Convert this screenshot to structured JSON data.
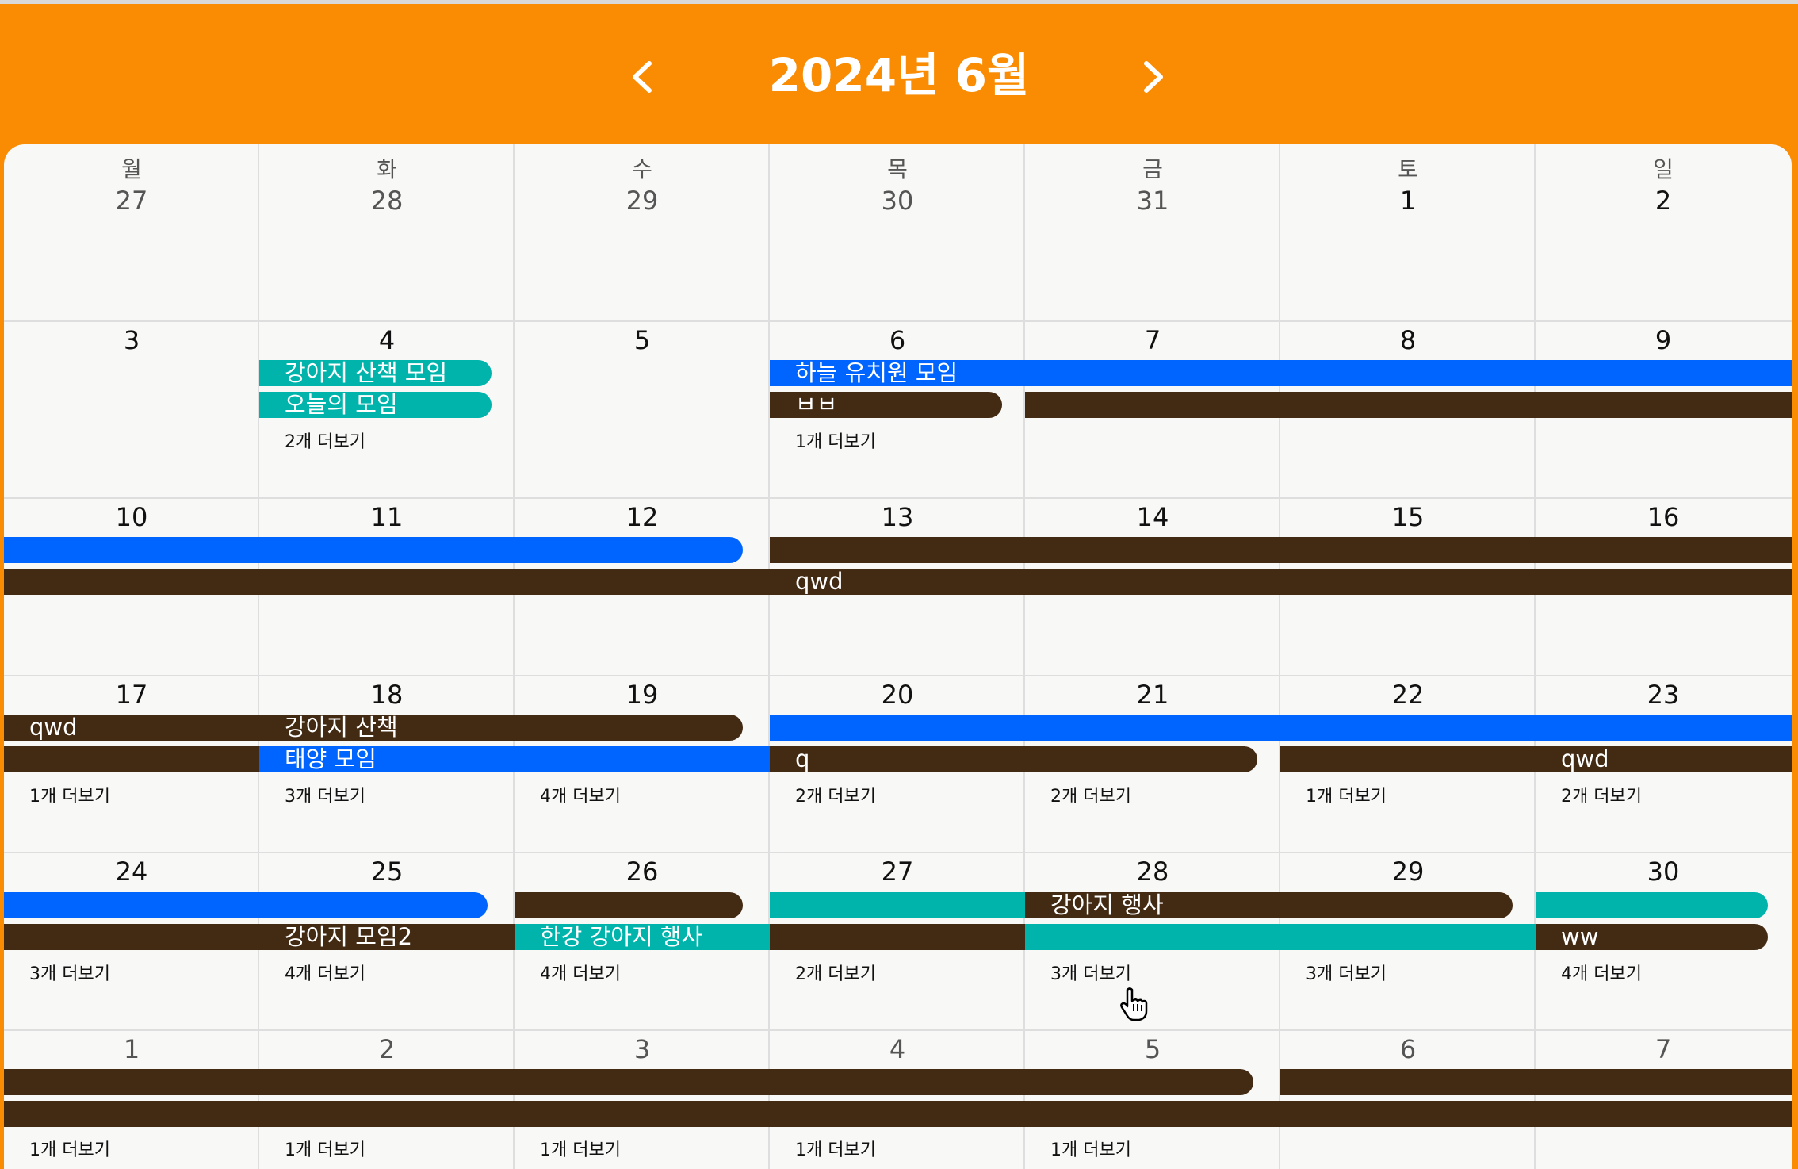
{
  "header": {
    "title": "2024년 6월",
    "prev_icon": "chevron-left-icon",
    "next_icon": "chevron-right-icon",
    "background_color": "#F98C02"
  },
  "colors": {
    "teal": "#00B4AC",
    "blue": "#0065FF",
    "brown": "#432A13"
  },
  "weekdays": [
    "월",
    "화",
    "수",
    "목",
    "금",
    "토",
    "일"
  ],
  "weeks": [
    {
      "days": [
        "27",
        "28",
        "29",
        "30",
        "31",
        "1",
        "2"
      ],
      "other_month": [
        true,
        true,
        true,
        true,
        true,
        false,
        false
      ]
    },
    {
      "days": [
        "3",
        "4",
        "5",
        "6",
        "7",
        "8",
        "9"
      ],
      "other_month": [
        false,
        false,
        false,
        false,
        false,
        false,
        false
      ]
    },
    {
      "days": [
        "10",
        "11",
        "12",
        "13",
        "14",
        "15",
        "16"
      ],
      "other_month": [
        false,
        false,
        false,
        false,
        false,
        false,
        false
      ]
    },
    {
      "days": [
        "17",
        "18",
        "19",
        "20",
        "21",
        "22",
        "23"
      ],
      "other_month": [
        false,
        false,
        false,
        false,
        false,
        false,
        false
      ]
    },
    {
      "days": [
        "24",
        "25",
        "26",
        "27",
        "28",
        "29",
        "30"
      ],
      "other_month": [
        false,
        false,
        false,
        false,
        false,
        false,
        false
      ]
    },
    {
      "days": [
        "1",
        "2",
        "3",
        "4",
        "5",
        "6",
        "7"
      ],
      "other_month": [
        true,
        true,
        true,
        true,
        true,
        true,
        true
      ]
    }
  ],
  "events": {
    "w2_e1": "강아지 산책 모임",
    "w2_e2": "오늘의 모임",
    "w2_e3": "하늘 유치원 모임",
    "w2_e4": "ㅂㅂ",
    "w3_e1": "qwd",
    "w4_e1": "qwd",
    "w4_e2": "강아지 산책",
    "w4_e3": "태양 모임",
    "w4_e4": "q",
    "w4_e5": "qwd",
    "w5_e1": "강아지 행사",
    "w5_e2": "강아지 모임2",
    "w5_e3": "한강 강아지 행사",
    "w5_e4": "ww"
  },
  "more": {
    "w2": [
      "2개 더보기",
      "1개 더보기"
    ],
    "w4": [
      "1개 더보기",
      "3개 더보기",
      "4개 더보기",
      "2개 더보기",
      "2개 더보기",
      "1개 더보기",
      "2개 더보기"
    ],
    "w5": [
      "3개 더보기",
      "4개 더보기",
      "4개 더보기",
      "2개 더보기",
      "3개 더보기",
      "3개 더보기",
      "4개 더보기"
    ],
    "w6": [
      "1개 더보기",
      "1개 더보기",
      "1개 더보기",
      "1개 더보기",
      "1개 더보기"
    ]
  }
}
